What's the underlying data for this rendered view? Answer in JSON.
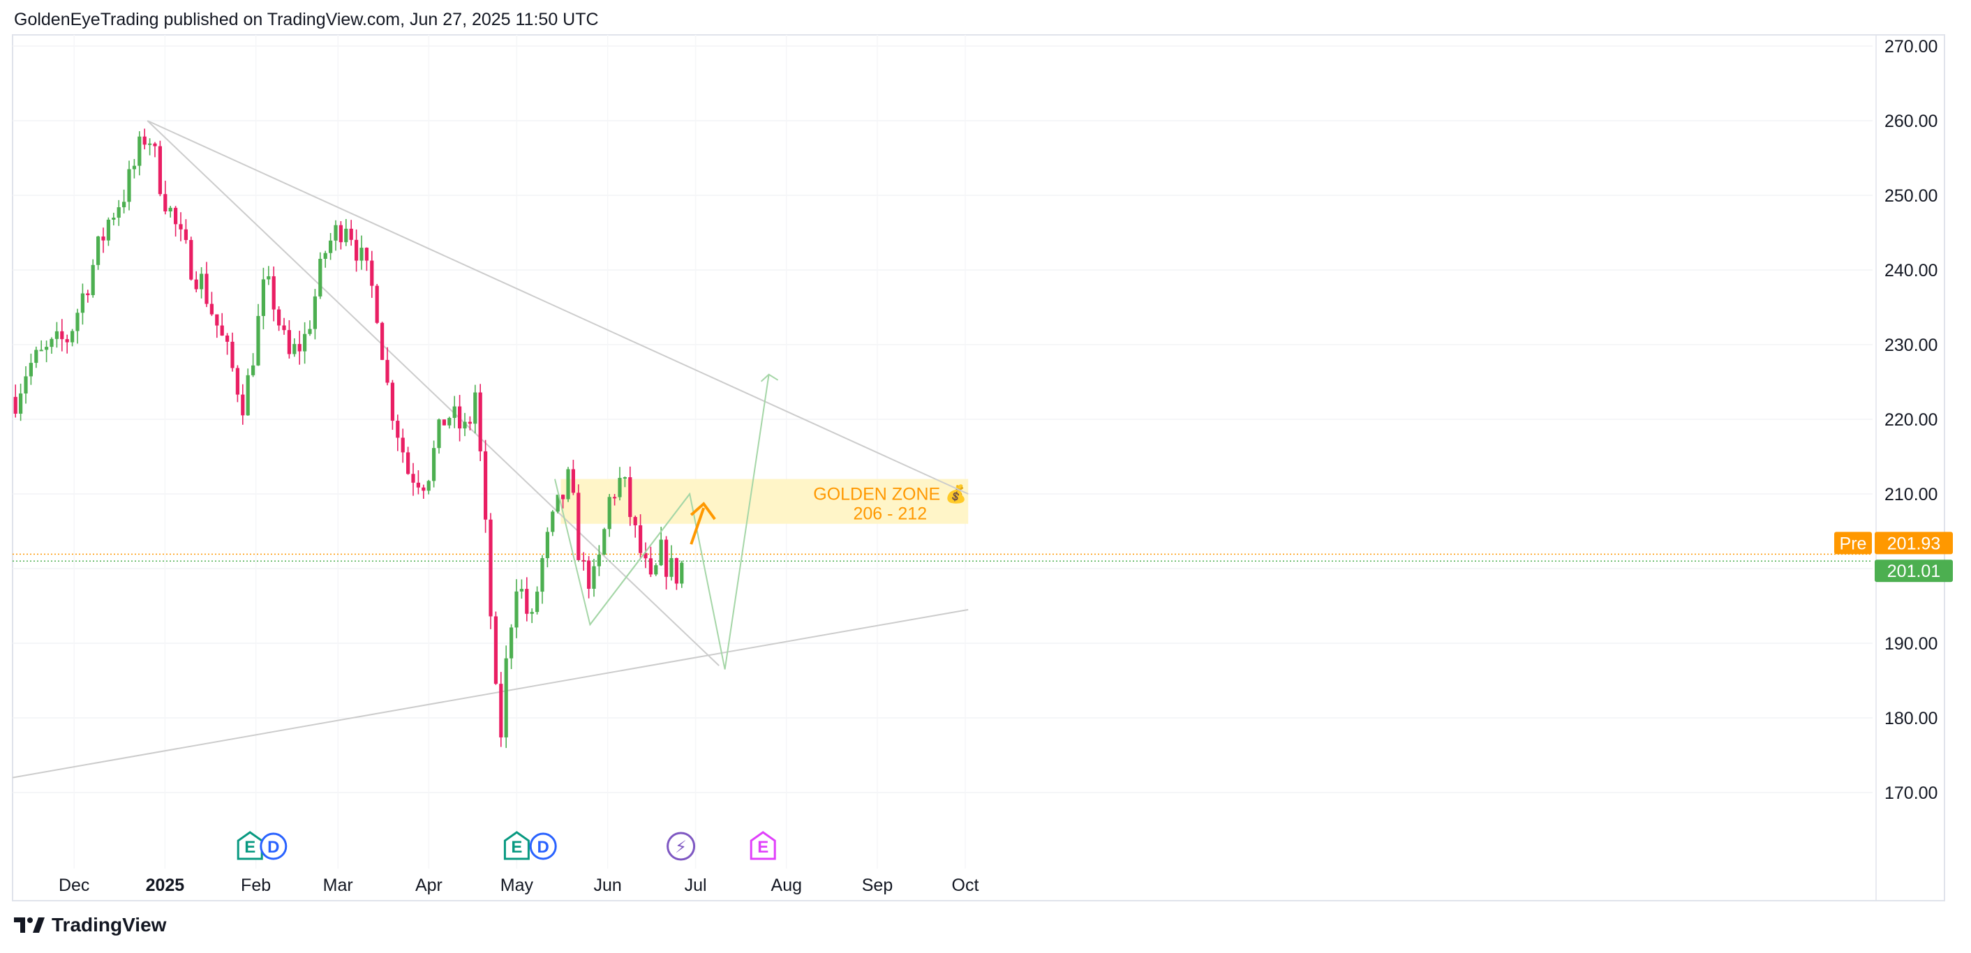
{
  "header": {
    "attribution": "GoldenEyeTrading published on TradingView.com, Jun 27, 2025 11:50 UTC"
  },
  "footer": {
    "brand": "TradingView"
  },
  "colors": {
    "up": "#4caf50",
    "down": "#e91e63",
    "orange": "#ff9800",
    "zone": "#fff5c8",
    "line": "#cccccc",
    "projection": "#a5d6a7"
  },
  "chart_data": {
    "type": "candlestick",
    "yaxis": {
      "ticks": [
        "270.00",
        "260.00",
        "250.00",
        "240.00",
        "230.00",
        "220.00",
        "210.00",
        "200.00",
        "190.00",
        "180.00",
        "170.00"
      ],
      "ylim": [
        160,
        272
      ]
    },
    "xaxis": {
      "ticks": [
        "Dec",
        "2025",
        "Feb",
        "Mar",
        "Apr",
        "May",
        "Jun",
        "Jul",
        "Aug",
        "Sep",
        "Oct"
      ]
    },
    "price_path": [
      {
        "date": "2024-11-11",
        "close": 223
      },
      {
        "date": "2024-11-15",
        "close": 227
      },
      {
        "date": "2024-11-22",
        "close": 229
      },
      {
        "date": "2024-11-29",
        "close": 231
      },
      {
        "date": "2024-12-06",
        "close": 239
      },
      {
        "date": "2024-12-13",
        "close": 247
      },
      {
        "date": "2024-12-19",
        "close": 251
      },
      {
        "date": "2024-12-26",
        "close": 259
      },
      {
        "date": "2024-12-31",
        "close": 251
      },
      {
        "date": "2025-01-07",
        "close": 243
      },
      {
        "date": "2025-01-14",
        "close": 238
      },
      {
        "date": "2025-01-21",
        "close": 230
      },
      {
        "date": "2025-01-28",
        "close": 222
      },
      {
        "date": "2025-02-04",
        "close": 238
      },
      {
        "date": "2025-02-07",
        "close": 236
      },
      {
        "date": "2025-02-12",
        "close": 228
      },
      {
        "date": "2025-02-18",
        "close": 231
      },
      {
        "date": "2025-02-25",
        "close": 243
      },
      {
        "date": "2025-03-04",
        "close": 247
      },
      {
        "date": "2025-03-10",
        "close": 240
      },
      {
        "date": "2025-03-14",
        "close": 236
      },
      {
        "date": "2025-03-18",
        "close": 224
      },
      {
        "date": "2025-03-25",
        "close": 213
      },
      {
        "date": "2025-03-31",
        "close": 212
      },
      {
        "date": "2025-04-07",
        "close": 221
      },
      {
        "date": "2025-04-14",
        "close": 218
      },
      {
        "date": "2025-04-17",
        "close": 224
      },
      {
        "date": "2025-04-21",
        "close": 201
      },
      {
        "date": "2025-04-25",
        "close": 175
      },
      {
        "date": "2025-04-28",
        "close": 190
      },
      {
        "date": "2025-05-01",
        "close": 199
      },
      {
        "date": "2025-05-06",
        "close": 192
      },
      {
        "date": "2025-05-09",
        "close": 200
      },
      {
        "date": "2025-05-14",
        "close": 207
      },
      {
        "date": "2025-05-19",
        "close": 212
      },
      {
        "date": "2025-05-23",
        "close": 200
      },
      {
        "date": "2025-05-28",
        "close": 198
      },
      {
        "date": "2025-06-02",
        "close": 210
      },
      {
        "date": "2025-06-06",
        "close": 212
      },
      {
        "date": "2025-06-10",
        "close": 205
      },
      {
        "date": "2025-06-16",
        "close": 197
      },
      {
        "date": "2025-06-19",
        "close": 202
      },
      {
        "date": "2025-06-24",
        "close": 199
      },
      {
        "date": "2025-06-27",
        "close": 201
      }
    ],
    "trendlines": [
      {
        "from": {
          "date": "2024-12-26",
          "price": 260
        },
        "to": {
          "date": "2025-07-09",
          "price": 187
        }
      },
      {
        "from": {
          "date": "2024-12-26",
          "price": 260
        },
        "to": {
          "date": "2025-10-02",
          "price": 210
        }
      },
      {
        "from": {
          "date": "2024-11-10",
          "price": 172
        },
        "to": {
          "date": "2025-10-02",
          "price": 194.5
        }
      }
    ],
    "projection": [
      {
        "date": "2025-05-26",
        "price": 192.5
      },
      {
        "date": "2025-06-29",
        "price": 210
      },
      {
        "date": "2025-07-11",
        "price": 186.5
      },
      {
        "date": "2025-07-26",
        "price": 226
      }
    ],
    "pattern": [
      {
        "date": "2025-05-14",
        "price": 212
      },
      {
        "date": "2025-05-26",
        "price": 192.5
      },
      {
        "date": "2025-06-29",
        "price": 210
      }
    ],
    "golden_zone": {
      "label": "GOLDEN ZONE 💰",
      "range": "206 - 212",
      "low": 206,
      "high": 212,
      "from": "2025-05-16",
      "to": "2025-10-02"
    },
    "price_labels": [
      {
        "label": "Pre",
        "value": "201.93",
        "price": 201.93,
        "color": "#ff9800"
      },
      {
        "label": "",
        "value": "201.01",
        "price": 201.01,
        "color": "#4caf50"
      }
    ],
    "events": [
      {
        "type": "E",
        "date": "2025-01-30",
        "color": "#089981"
      },
      {
        "type": "D",
        "date": "2025-02-07",
        "color": "#2962ff"
      },
      {
        "type": "E",
        "date": "2025-05-01",
        "color": "#089981"
      },
      {
        "type": "D",
        "date": "2025-05-10",
        "color": "#2962ff"
      },
      {
        "type": "⚡",
        "date": "2025-06-26",
        "color": "#7e57c2"
      },
      {
        "type": "E",
        "date": "2025-07-24",
        "color": "#e040fb"
      }
    ]
  }
}
